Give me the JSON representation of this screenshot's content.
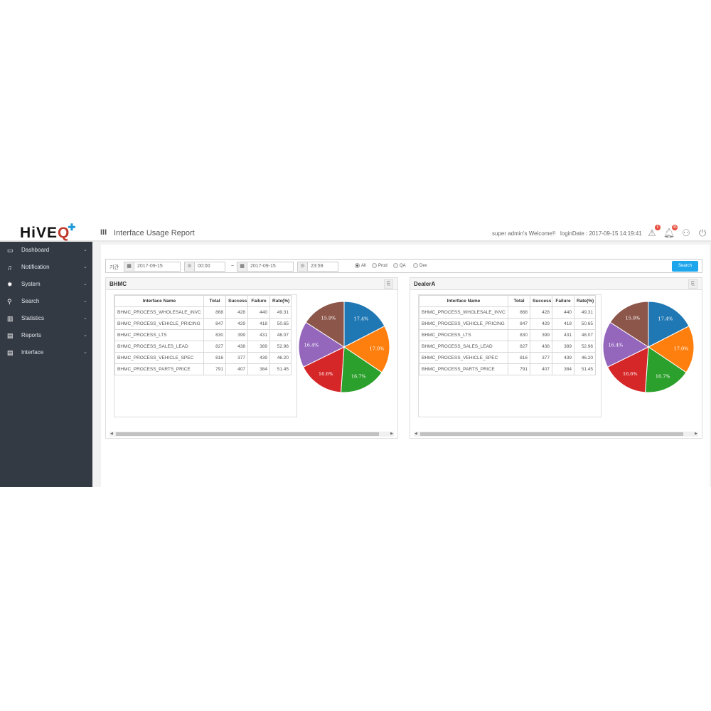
{
  "header": {
    "logo": "HiVEQ",
    "page_title": "Interface Usage Report",
    "welcome": "super admin's Welcome!!",
    "login_date": "loginDate : 2017-09-15 14:19:41",
    "alert_count": "6",
    "notification_count": "35"
  },
  "sidebar": {
    "items": [
      {
        "label": "Dashboard",
        "icon": "monitor-icon"
      },
      {
        "label": "Notification",
        "icon": "bell-icon"
      },
      {
        "label": "System",
        "icon": "gear-icon"
      },
      {
        "label": "Search",
        "icon": "search-icon"
      },
      {
        "label": "Statistics",
        "icon": "bar-chart-icon"
      },
      {
        "label": "Reports",
        "icon": "file-icon"
      },
      {
        "label": "Interface",
        "icon": "file-icon"
      }
    ]
  },
  "filter": {
    "period_label": "기간",
    "start_date": "2017-09-15",
    "start_time": "00:00",
    "separator": "~",
    "end_date": "2017-09-15",
    "end_time": "23:59",
    "env_options": [
      {
        "label": "All",
        "selected": true
      },
      {
        "label": "Prod",
        "selected": false
      },
      {
        "label": "QA",
        "selected": false
      },
      {
        "label": "Dev",
        "selected": false
      }
    ],
    "search_label": "Search"
  },
  "colors": {
    "slices": [
      "#1f77b4",
      "#ff7f0e",
      "#2ca02c",
      "#d62728",
      "#9467bd",
      "#8c564b"
    ],
    "accent": "#1ea6ec",
    "sidebar": "#343a44"
  },
  "panels": [
    {
      "title": "BHMC",
      "columns": [
        "Interface Name",
        "Total",
        "Success",
        "Failure",
        "Rate(%)"
      ],
      "rows": [
        [
          "BHMC_PROCESS_WHOLESALE_INVC",
          "868",
          "428",
          "440",
          "49.31"
        ],
        [
          "BHMC_PROCESS_VEHICLE_PRICING",
          "847",
          "429",
          "418",
          "50.65"
        ],
        [
          "BHMC_PROCESS_LTS",
          "830",
          "399",
          "431",
          "48.07"
        ],
        [
          "BHMC_PROCESS_SALES_LEAD",
          "827",
          "438",
          "389",
          "52.96"
        ],
        [
          "BHMC_PROCESS_VEHICLE_SPEC",
          "816",
          "377",
          "439",
          "46.20"
        ],
        [
          "BHMC_PROCESS_PARTS_PRICE",
          "791",
          "407",
          "384",
          "51.45"
        ]
      ]
    },
    {
      "title": "DealerA",
      "columns": [
        "Interface Name",
        "Total",
        "Success",
        "Failure",
        "Rate(%)"
      ],
      "rows": [
        [
          "BHMC_PROCESS_WHOLESALE_INVC",
          "868",
          "428",
          "440",
          "49.31"
        ],
        [
          "BHMC_PROCESS_VEHICLE_PRICING",
          "847",
          "429",
          "418",
          "50.65"
        ],
        [
          "BHMC_PROCESS_LTS",
          "830",
          "399",
          "431",
          "48.07"
        ],
        [
          "BHMC_PROCESS_SALES_LEAD",
          "827",
          "438",
          "389",
          "52.96"
        ],
        [
          "BHMC_PROCESS_VEHICLE_SPEC",
          "816",
          "377",
          "439",
          "46.20"
        ],
        [
          "BHMC_PROCESS_PARTS_PRICE",
          "791",
          "407",
          "384",
          "51.45"
        ]
      ]
    }
  ],
  "chart_data": [
    {
      "type": "pie",
      "categories": [
        "BHMC_PROCESS_WHOLESALE_INVC",
        "BHMC_PROCESS_VEHICLE_PRICING",
        "BHMC_PROCESS_LTS",
        "BHMC_PROCESS_SALES_LEAD",
        "BHMC_PROCESS_VEHICLE_SPEC",
        "BHMC_PROCESS_PARTS_PRICE"
      ],
      "values": [
        868,
        847,
        830,
        827,
        816,
        791
      ],
      "labels": [
        "17.4%",
        "17.0%",
        "16.7%",
        "16.6%",
        "16.4%",
        "15.9%"
      ]
    },
    {
      "type": "pie",
      "categories": [
        "BHMC_PROCESS_WHOLESALE_INVC",
        "BHMC_PROCESS_VEHICLE_PRICING",
        "BHMC_PROCESS_LTS",
        "BHMC_PROCESS_SALES_LEAD",
        "BHMC_PROCESS_VEHICLE_SPEC",
        "BHMC_PROCESS_PARTS_PRICE"
      ],
      "values": [
        868,
        847,
        830,
        827,
        816,
        791
      ],
      "labels": [
        "17.4%",
        "17.0%",
        "16.7%",
        "16.6%",
        "16.4%",
        "15.9%"
      ]
    }
  ]
}
